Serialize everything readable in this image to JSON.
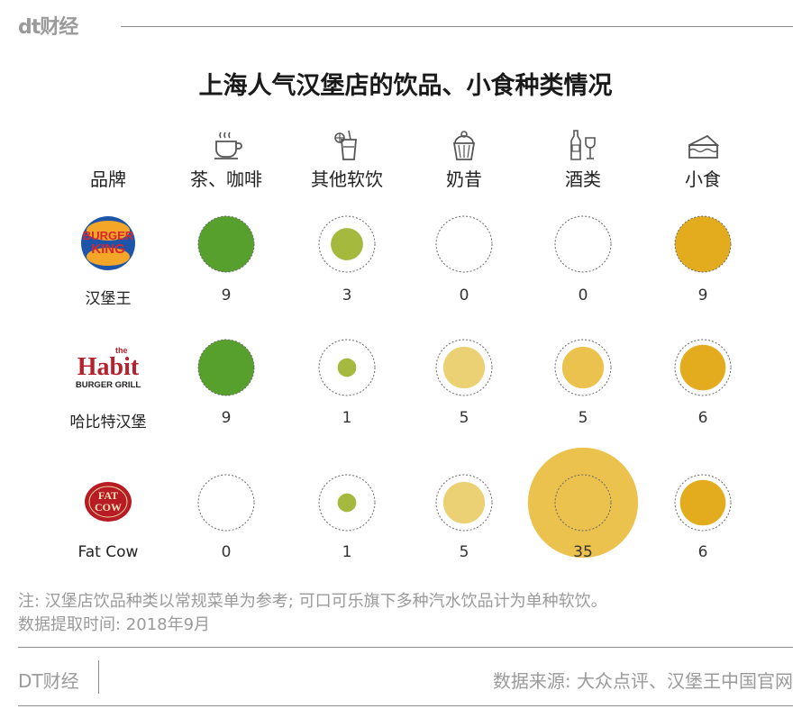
{
  "header": {
    "logo": "dt财经"
  },
  "title": "上海人气汉堡店的饮品、小食种类情况",
  "columns": {
    "brand": "品牌",
    "items": [
      {
        "label": "茶、咖啡",
        "icon": "tea-cup-icon"
      },
      {
        "label": "其他软饮",
        "icon": "soft-drink-icon"
      },
      {
        "label": "奶昔",
        "icon": "milkshake-icon"
      },
      {
        "label": "酒类",
        "icon": "wine-icon"
      },
      {
        "label": "小食",
        "icon": "cake-icon"
      }
    ]
  },
  "brands": [
    {
      "name": "汉堡王",
      "logo_text": [
        "BURGER",
        "KING"
      ]
    },
    {
      "name": "哈比特汉堡",
      "logo_text": [
        "the",
        "Habit",
        "BURGER GRILL"
      ]
    },
    {
      "name": "Fat Cow",
      "logo_text": [
        "FAT",
        "COW"
      ]
    }
  ],
  "colors": {
    "tea": "#57a02e",
    "soft_drink": "#a4b93e",
    "shake": "#ecd074",
    "alcohol": "#ebc24d",
    "snack": "#e3ac1e",
    "ring": "#666666"
  },
  "chart_data": {
    "type": "bubble",
    "categories": [
      "茶、咖啡",
      "其他软饮",
      "奶昔",
      "酒类",
      "小食"
    ],
    "series": [
      {
        "name": "汉堡王",
        "values": [
          9,
          3,
          0,
          0,
          9
        ],
        "labels": [
          "9",
          "3",
          "0",
          "0",
          "9"
        ]
      },
      {
        "name": "哈比特汉堡",
        "values": [
          9,
          1,
          5,
          5,
          6
        ],
        "labels": [
          "9",
          "1",
          "5",
          "5",
          "6"
        ]
      },
      {
        "name": "Fat Cow",
        "values": [
          0,
          1,
          5,
          35,
          6
        ],
        "labels": [
          "0",
          "1",
          "5",
          "35",
          "6"
        ]
      }
    ]
  },
  "note": {
    "line1": "注: 汉堡店饮品种类以常规菜单为参考; 可口可乐旗下多种汽水饮品计为单种软饮。",
    "line2": "数据提取时间: 2018年9月"
  },
  "footer": {
    "brand": "DT财经",
    "source": "数据来源: 大众点评、汉堡王中国官网"
  }
}
